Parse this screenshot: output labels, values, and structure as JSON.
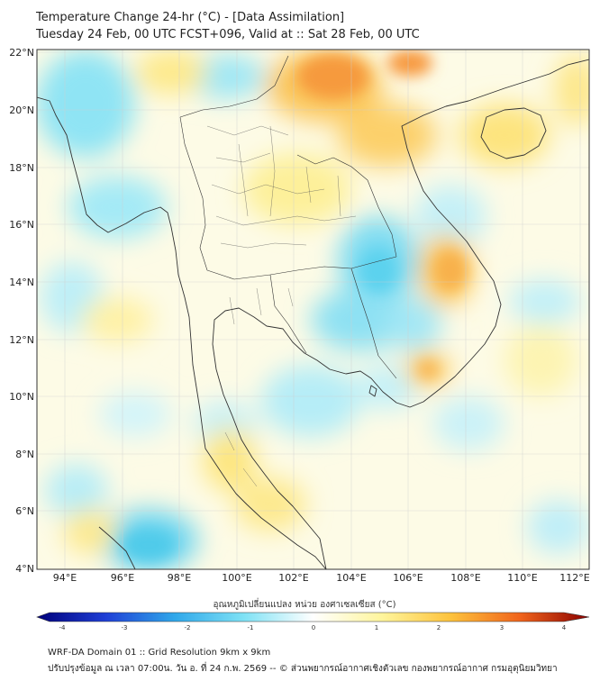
{
  "header": {
    "title_line1": "Temperature Change 24-hr (°C) - [Data Assimilation]",
    "title_line2": "Tuesday 24 Feb, 00 UTC FCST+096, Valid at :: Sat 28 Feb, 00 UTC"
  },
  "map": {
    "lat_labels": [
      "22°N",
      "20°N",
      "18°N",
      "16°N",
      "14°N",
      "12°N",
      "10°N",
      "8°N",
      "6°N",
      "4°N"
    ],
    "lon_labels": [
      "94°E",
      "96°E",
      "98°E",
      "100°E",
      "102°E",
      "104°E",
      "106°E",
      "108°E",
      "110°E",
      "112°E"
    ]
  },
  "colorbar": {
    "label": "อุณหภูมิเปลี่ยนแปลง หน่วย องศาเซลเซียส (°C)",
    "ticks": [
      "-4",
      "-3",
      "-2",
      "-1",
      "0",
      "1",
      "2",
      "3",
      "4"
    ],
    "colors": {
      "neg4": "#00007a",
      "neg3": "#1f3fd6",
      "neg2": "#30a8ea",
      "neg1": "#7fe2f5",
      "zero": "#ffffff",
      "pos1": "#fff59c",
      "pos2": "#fdc23c",
      "pos3": "#f0641c",
      "pos4": "#8a0000"
    }
  },
  "footer": {
    "line1": "WRF-DA Domain 01 :: Grid Resolution 9km x 9km",
    "line2": "ปรับปรุงข้อมูล ณ เวลา 07:00น. วัน อ. ที่ 24 ก.พ. 2569 -- © ส่วนพยากรณ์อากาศเชิงตัวเลข กองพยากรณ์อากาศ กรมอุตุนิยมวิทยา"
  }
}
